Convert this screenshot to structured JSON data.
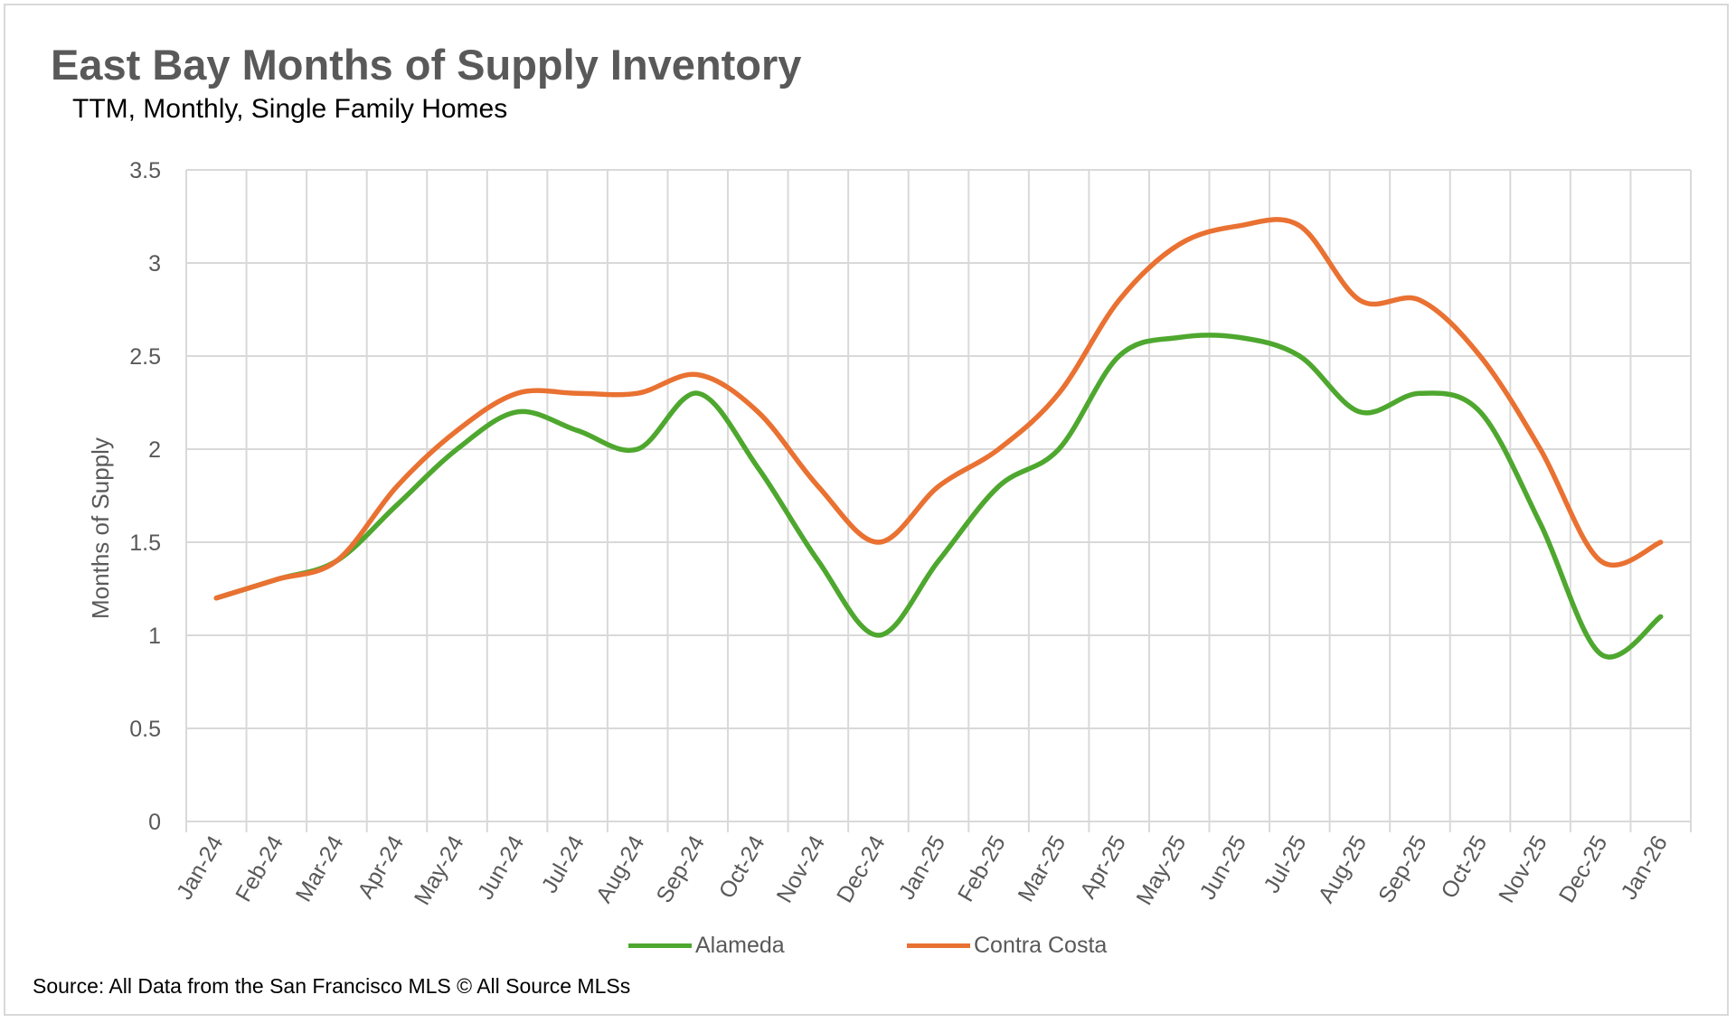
{
  "chart_data": {
    "type": "line",
    "title": "East Bay Months of Supply Inventory",
    "subtitle": "TTM, Monthly, Single Family Homes",
    "xlabel": "",
    "ylabel": "Months of Supply",
    "ylim": [
      0,
      3.5
    ],
    "yticks": [
      "0",
      "0.5",
      "1",
      "1.5",
      "2",
      "2.5",
      "3",
      "3.5"
    ],
    "grid": true,
    "legend_position": "bottom",
    "categories": [
      "Jan-24",
      "Feb-24",
      "Mar-24",
      "Apr-24",
      "May-24",
      "Jun-24",
      "Jul-24",
      "Aug-24",
      "Sep-24",
      "Oct-24",
      "Nov-24",
      "Dec-24",
      "Jan-25",
      "Feb-25",
      "Mar-25",
      "Apr-25",
      "May-25",
      "Jun-25",
      "Jul-25",
      "Aug-25",
      "Sep-25",
      "Oct-25",
      "Nov-25",
      "Dec-25",
      "Jan-26"
    ],
    "series": [
      {
        "name": "Alameda",
        "color": "#4ea72e",
        "values": [
          1.2,
          1.3,
          1.4,
          1.7,
          2.0,
          2.2,
          2.1,
          2.0,
          2.3,
          1.9,
          1.4,
          1.0,
          1.4,
          1.8,
          2.0,
          2.5,
          2.6,
          2.6,
          2.5,
          2.2,
          2.3,
          2.2,
          1.6,
          0.9,
          1.1
        ]
      },
      {
        "name": "Contra Costa",
        "color": "#e97132",
        "values": [
          1.2,
          1.3,
          1.4,
          1.8,
          2.1,
          2.3,
          2.3,
          2.3,
          2.4,
          2.2,
          1.8,
          1.5,
          1.8,
          2.0,
          2.3,
          2.8,
          3.1,
          3.2,
          3.2,
          2.8,
          2.8,
          2.5,
          2.0,
          1.4,
          1.5
        ]
      }
    ],
    "source": "Source: All Data from the San Francisco MLS © All Source MLSs"
  }
}
